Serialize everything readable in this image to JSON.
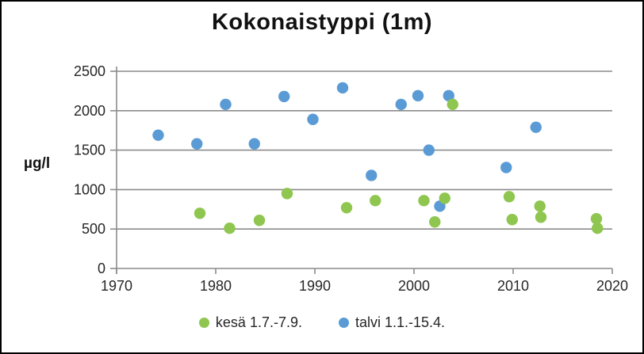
{
  "chart_data": {
    "type": "scatter",
    "title": "Kokonaistyppi (1m)",
    "xlabel": "",
    "ylabel": "µg/l",
    "xlim": [
      1970,
      2020
    ],
    "ylim": [
      0,
      2500
    ],
    "x_ticks": [
      1970,
      1980,
      1990,
      2000,
      2010,
      2020
    ],
    "y_ticks": [
      0,
      500,
      1000,
      1500,
      2000,
      2500
    ],
    "grid": "horizontal",
    "legend_position": "bottom-center",
    "axis_color": "#8c8c8c",
    "series": [
      {
        "name": "kesä 1.7.-7.9.",
        "color": "#8ec64f",
        "points": [
          {
            "x": 1978.4,
            "y": 700
          },
          {
            "x": 1981.4,
            "y": 510
          },
          {
            "x": 1984.4,
            "y": 610
          },
          {
            "x": 1987.2,
            "y": 950
          },
          {
            "x": 1993.2,
            "y": 770
          },
          {
            "x": 1996.1,
            "y": 860
          },
          {
            "x": 2001.0,
            "y": 860
          },
          {
            "x": 2002.1,
            "y": 590
          },
          {
            "x": 2003.1,
            "y": 890
          },
          {
            "x": 2003.9,
            "y": 2080
          },
          {
            "x": 2009.6,
            "y": 910
          },
          {
            "x": 2009.9,
            "y": 620
          },
          {
            "x": 2012.7,
            "y": 790
          },
          {
            "x": 2012.8,
            "y": 650
          },
          {
            "x": 2018.4,
            "y": 630
          },
          {
            "x": 2018.5,
            "y": 510
          }
        ]
      },
      {
        "name": "talvi 1.1.-15.4.",
        "color": "#5b9bd5",
        "points": [
          {
            "x": 1974.2,
            "y": 1690
          },
          {
            "x": 1978.1,
            "y": 1580
          },
          {
            "x": 1981.0,
            "y": 2080
          },
          {
            "x": 1983.9,
            "y": 1580
          },
          {
            "x": 1986.9,
            "y": 2180
          },
          {
            "x": 1989.8,
            "y": 1890
          },
          {
            "x": 1992.8,
            "y": 2290
          },
          {
            "x": 1995.7,
            "y": 1180
          },
          {
            "x": 1998.7,
            "y": 2080
          },
          {
            "x": 2000.4,
            "y": 2190
          },
          {
            "x": 2001.5,
            "y": 1500
          },
          {
            "x": 2002.6,
            "y": 790
          },
          {
            "x": 2003.5,
            "y": 2190
          },
          {
            "x": 2009.3,
            "y": 1280
          },
          {
            "x": 2012.3,
            "y": 1790
          }
        ]
      }
    ]
  }
}
